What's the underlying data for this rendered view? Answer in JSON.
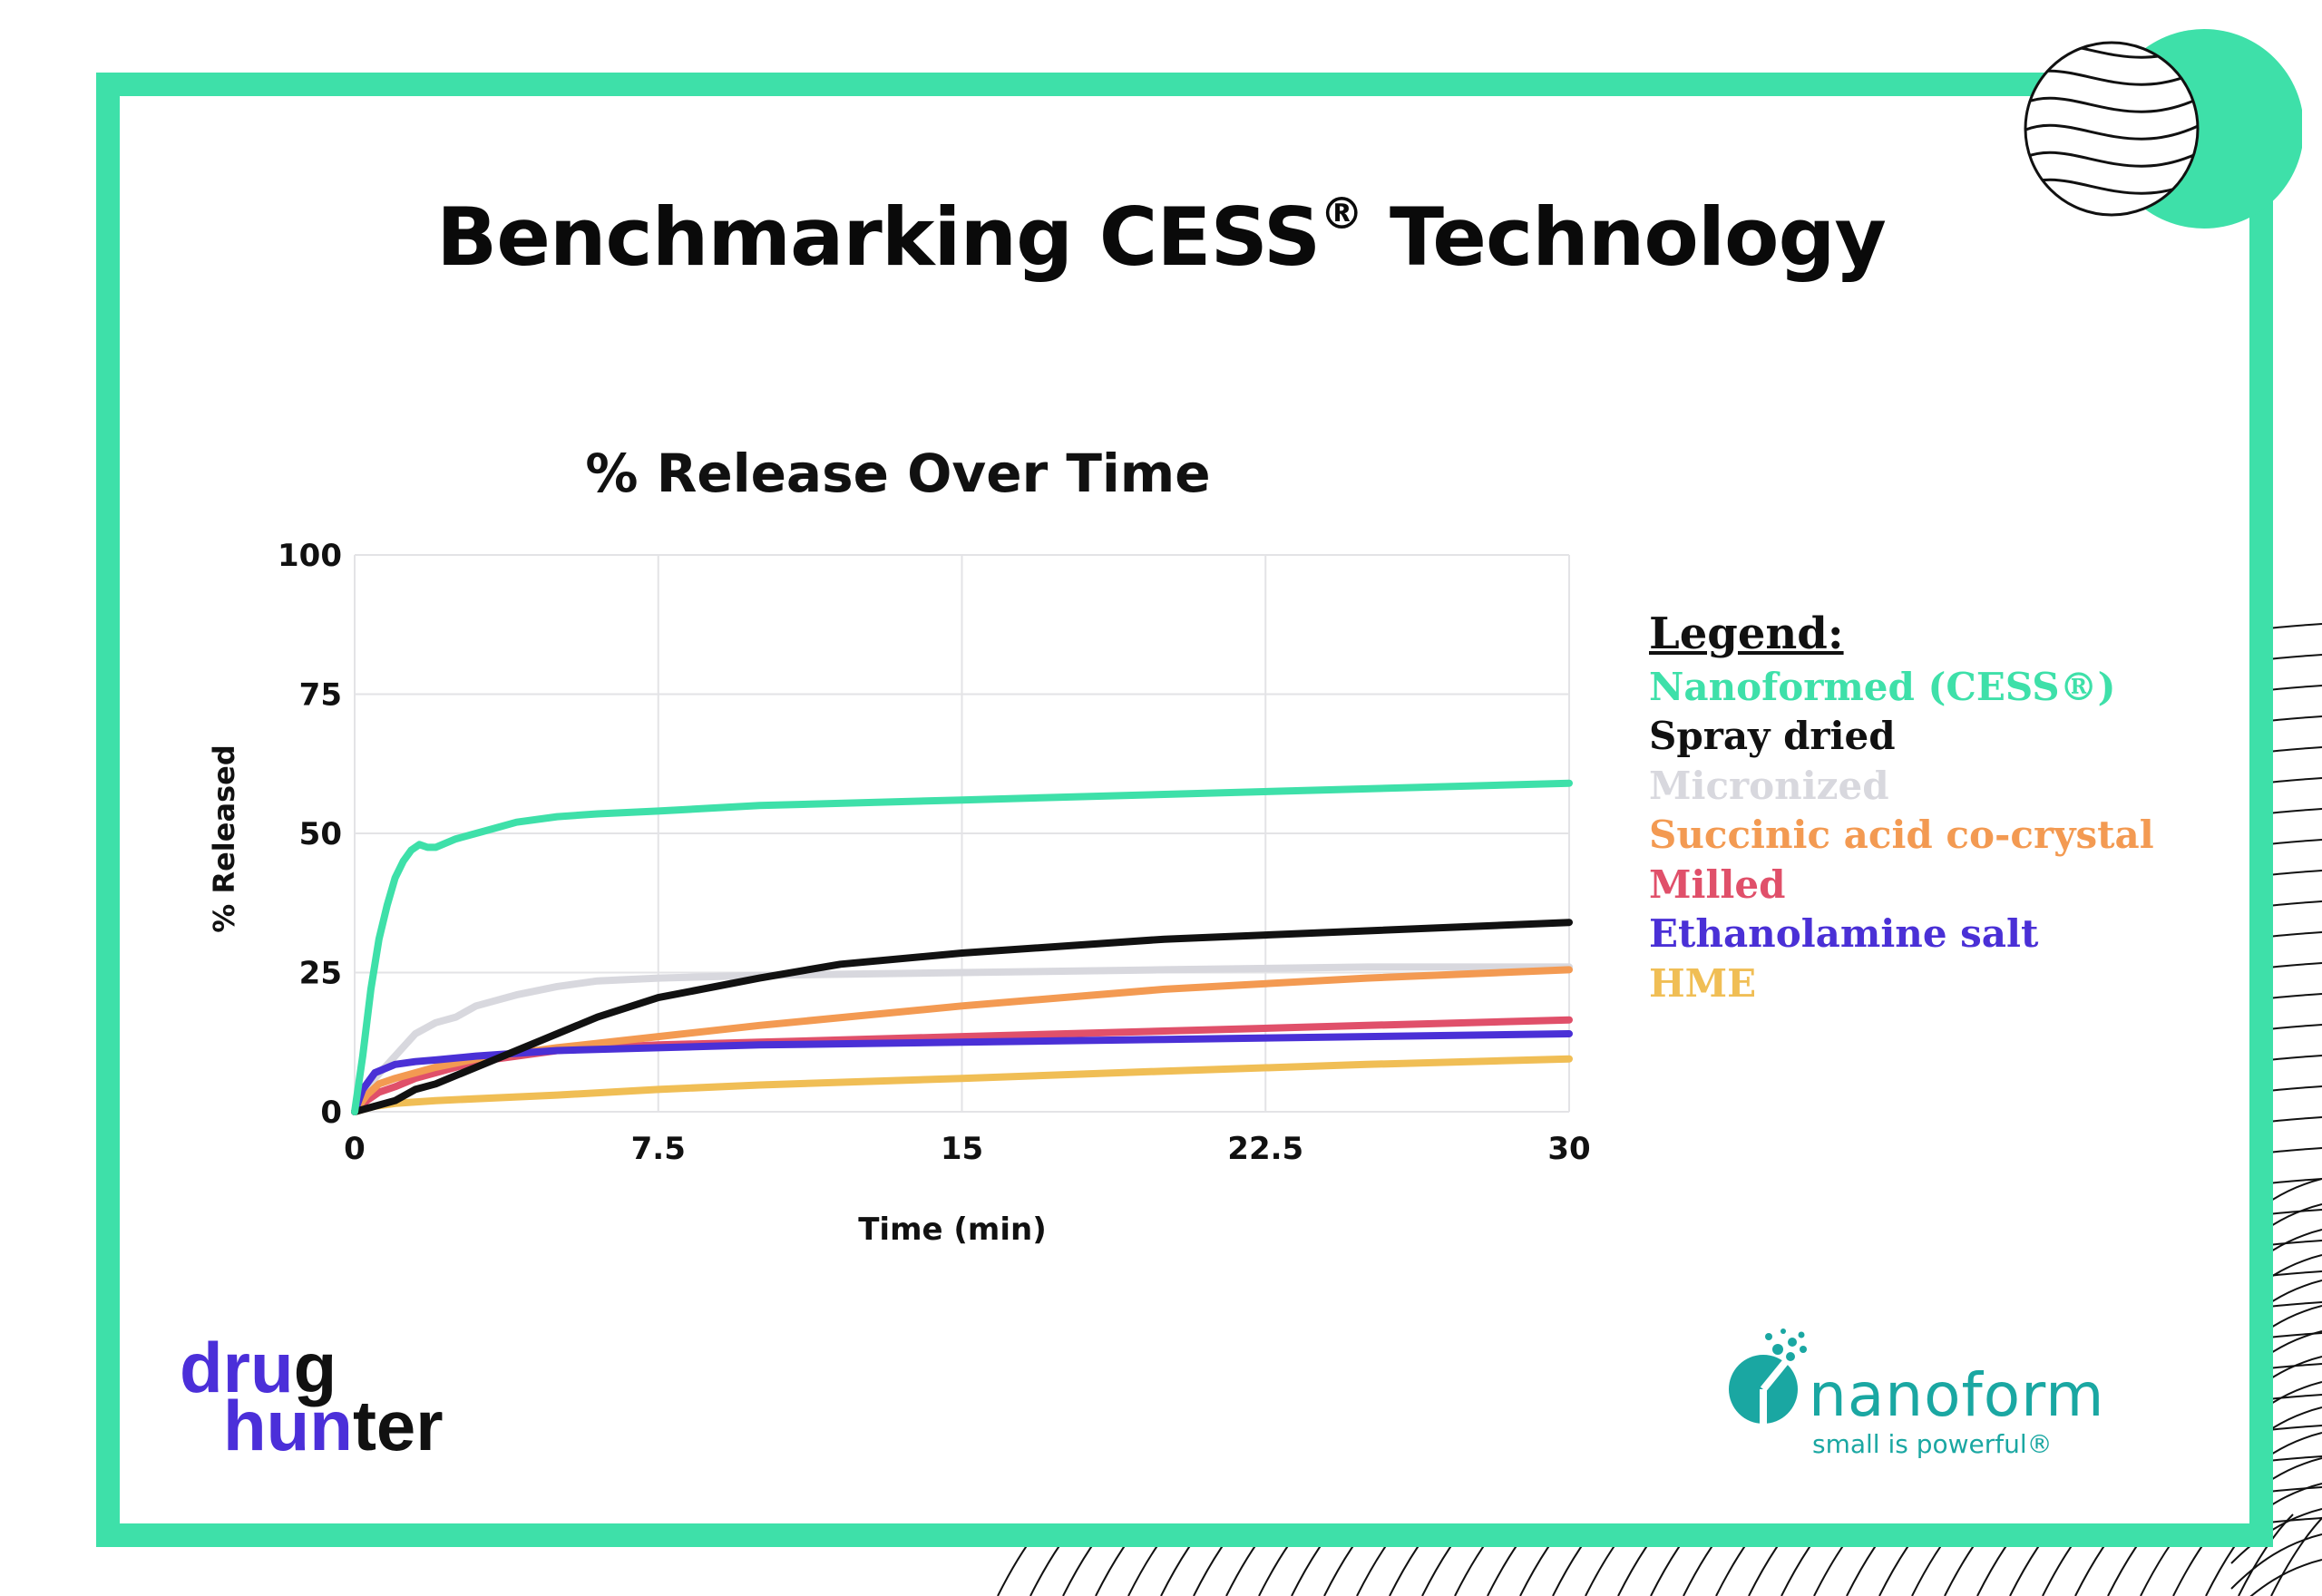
{
  "page": {
    "title": "Benchmarking CESS",
    "title_suffix": "Technology",
    "title_reg": "®"
  },
  "chart_data": {
    "type": "line",
    "title": "% Release Over Time",
    "xlabel": "Time (min)",
    "ylabel": "% Released",
    "xlim": [
      0,
      30
    ],
    "ylim": [
      0,
      100
    ],
    "xticks": [
      0,
      7.5,
      15,
      22.5,
      30
    ],
    "xtick_labels": [
      "0",
      "7.5",
      "15",
      "22.5",
      "30"
    ],
    "yticks": [
      0,
      25,
      50,
      75,
      100
    ],
    "ytick_labels": [
      "0",
      "25",
      "50",
      "75",
      "100"
    ],
    "grid": true,
    "series": [
      {
        "name": "Micronized",
        "color": "#d8d8de",
        "x": [
          0,
          0.5,
          1,
          1.5,
          2,
          2.5,
          3,
          3.5,
          4,
          5,
          6,
          7.5,
          10,
          15,
          20,
          25,
          30
        ],
        "y": [
          0,
          6,
          10,
          14,
          16,
          17,
          19,
          20,
          21,
          22.5,
          23.5,
          24,
          24.5,
          25,
          25.5,
          26,
          26
        ]
      },
      {
        "name": "HME",
        "color": "#f0be55",
        "x": [
          0,
          0.5,
          1,
          2,
          5,
          7.5,
          10,
          15,
          20,
          25,
          30
        ],
        "y": [
          0,
          1,
          1.5,
          2,
          3,
          4,
          4.8,
          6,
          7.3,
          8.5,
          9.5
        ]
      },
      {
        "name": "Milled",
        "color": "#e0506a",
        "x": [
          0,
          0.3,
          0.6,
          1,
          1.5,
          2,
          3,
          4,
          5,
          6,
          7.5,
          10,
          15,
          20,
          25,
          30
        ],
        "y": [
          0,
          2,
          3.5,
          4.5,
          6,
          7,
          9,
          10,
          11,
          11.5,
          12,
          12.5,
          13.5,
          14.5,
          15.5,
          16.5
        ]
      },
      {
        "name": "Succinic acid co-crystal",
        "color": "#f39a52",
        "x": [
          0,
          0.3,
          0.6,
          1,
          2,
          3,
          4,
          5,
          7.5,
          10,
          15,
          20,
          25,
          30
        ],
        "y": [
          0,
          3,
          5,
          6,
          8,
          9.5,
          10.5,
          11.5,
          13.5,
          15.5,
          19,
          22,
          24,
          25.5
        ]
      },
      {
        "name": "Ethanolamine salt",
        "color": "#4a30d6",
        "x": [
          0,
          0.2,
          0.5,
          1,
          1.5,
          2,
          3,
          5,
          7.5,
          10,
          15,
          20,
          25,
          30
        ],
        "y": [
          0,
          4,
          7,
          8.5,
          9,
          9.3,
          10,
          11,
          11.5,
          12,
          12.5,
          13,
          13.5,
          14
        ]
      },
      {
        "name": "Spray dried",
        "color": "#111111",
        "x": [
          0,
          0.5,
          1,
          1.5,
          2,
          2.5,
          3,
          4,
          5,
          6,
          7.5,
          10,
          12,
          15,
          20,
          25,
          30
        ],
        "y": [
          0,
          1,
          2,
          4,
          5,
          6.5,
          8,
          11,
          14,
          17,
          20.5,
          24,
          26.5,
          28.5,
          31,
          32.5,
          34
        ]
      },
      {
        "name": "Nanoformed (CESS®)",
        "color": "#3ee0a9",
        "x": [
          0,
          0.2,
          0.4,
          0.6,
          0.8,
          1,
          1.2,
          1.4,
          1.6,
          1.8,
          2,
          2.5,
          3,
          3.5,
          4,
          5,
          6,
          7.5,
          10,
          15,
          20,
          25,
          30
        ],
        "y": [
          0,
          10,
          22,
          31,
          37,
          42,
          45,
          47,
          48,
          47.5,
          47.5,
          49,
          50,
          51,
          52,
          53,
          53.5,
          54,
          55,
          56,
          57,
          58,
          59
        ]
      }
    ]
  },
  "legend": {
    "title": "Legend:",
    "items": [
      {
        "label": "Nanoformed (CESS®)",
        "color": "#3ee0a9"
      },
      {
        "label": "Spray dried",
        "color": "#111111"
      },
      {
        "label": "Micronized",
        "color": "#d8d8de"
      },
      {
        "label": "Succinic acid co-crystal",
        "color": "#f39a52"
      },
      {
        "label": "Milled",
        "color": "#e0506a"
      },
      {
        "label": "Ethanolamine salt",
        "color": "#4a30d6"
      },
      {
        "label": "HME",
        "color": "#f0be55"
      }
    ]
  },
  "logos": {
    "drug_hunter": {
      "line1_a": "dru",
      "line1_b": "g",
      "line2_a": "hun",
      "line2_b": "ter"
    },
    "nanoform": {
      "word": "nanoform",
      "tagline": "small is powerful®"
    }
  },
  "colors": {
    "frame": "#3ee0a9",
    "nanoform": "#1aa7a2",
    "drughunter_purple": "#4b2fd9"
  }
}
